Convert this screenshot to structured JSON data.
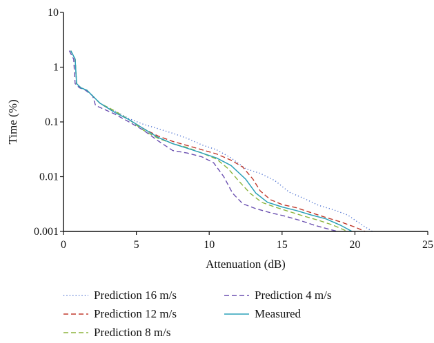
{
  "chart_data": {
    "type": "line",
    "title": "",
    "xlabel": "Attenuation (dB)",
    "ylabel": "Time (%)",
    "xlim": [
      0,
      25
    ],
    "ylim": [
      0.001,
      10
    ],
    "y_scale": "log",
    "grid": false,
    "legend_position": "bottom",
    "x_ticks": [
      "0",
      "5",
      "10",
      "15",
      "20",
      "25"
    ],
    "y_ticks": [
      "0.001",
      "0.01",
      "0.1",
      "1",
      "10"
    ],
    "series": [
      {
        "name": "Prediction 16 m/s",
        "color": "#4a6fd0",
        "dash": "dotted",
        "points": [
          [
            0.5,
            2.0
          ],
          [
            0.8,
            1.4
          ],
          [
            0.9,
            0.5
          ],
          [
            1.2,
            0.42
          ],
          [
            1.6,
            0.38
          ],
          [
            2.0,
            0.3
          ],
          [
            2.5,
            0.22
          ],
          [
            3.5,
            0.16
          ],
          [
            4.5,
            0.115
          ],
          [
            5.5,
            0.09
          ],
          [
            6.5,
            0.075
          ],
          [
            7.5,
            0.062
          ],
          [
            8.5,
            0.05
          ],
          [
            9.5,
            0.038
          ],
          [
            10.5,
            0.031
          ],
          [
            11.5,
            0.022
          ],
          [
            12.5,
            0.014
          ],
          [
            13.5,
            0.0115
          ],
          [
            14.5,
            0.0085
          ],
          [
            15.5,
            0.0052
          ],
          [
            16.5,
            0.004
          ],
          [
            17.5,
            0.003
          ],
          [
            18.5,
            0.0025
          ],
          [
            19.5,
            0.002
          ],
          [
            20.5,
            0.0013
          ],
          [
            21.2,
            0.001
          ]
        ]
      },
      {
        "name": "Prediction 12 m/s",
        "color": "#c0392b",
        "dash": "dashed",
        "points": [
          [
            0.5,
            2.0
          ],
          [
            0.8,
            1.4
          ],
          [
            0.9,
            0.5
          ],
          [
            1.2,
            0.42
          ],
          [
            1.6,
            0.38
          ],
          [
            2.0,
            0.3
          ],
          [
            2.5,
            0.22
          ],
          [
            3.5,
            0.15
          ],
          [
            4.5,
            0.11
          ],
          [
            5.5,
            0.075
          ],
          [
            6.5,
            0.055
          ],
          [
            7.5,
            0.044
          ],
          [
            8.5,
            0.037
          ],
          [
            9.5,
            0.031
          ],
          [
            10.5,
            0.026
          ],
          [
            11.5,
            0.02
          ],
          [
            12.3,
            0.015
          ],
          [
            13.0,
            0.009
          ],
          [
            13.5,
            0.0055
          ],
          [
            14.2,
            0.0038
          ],
          [
            15.0,
            0.0031
          ],
          [
            16.0,
            0.0027
          ],
          [
            17.0,
            0.0022
          ],
          [
            18.0,
            0.0018
          ],
          [
            19.0,
            0.0015
          ],
          [
            20.0,
            0.0012
          ],
          [
            20.7,
            0.001
          ]
        ]
      },
      {
        "name": "Prediction 8 m/s",
        "color": "#8cb43c",
        "dash": "dashed",
        "points": [
          [
            0.5,
            2.0
          ],
          [
            0.8,
            1.4
          ],
          [
            0.9,
            0.5
          ],
          [
            1.2,
            0.42
          ],
          [
            1.6,
            0.38
          ],
          [
            2.0,
            0.3
          ],
          [
            2.5,
            0.22
          ],
          [
            3.5,
            0.16
          ],
          [
            4.5,
            0.11
          ],
          [
            5.5,
            0.07
          ],
          [
            6.5,
            0.05
          ],
          [
            7.5,
            0.04
          ],
          [
            8.5,
            0.034
          ],
          [
            9.5,
            0.027
          ],
          [
            10.5,
            0.021
          ],
          [
            11.3,
            0.014
          ],
          [
            12.0,
            0.0085
          ],
          [
            12.8,
            0.005
          ],
          [
            13.6,
            0.0034
          ],
          [
            14.5,
            0.0028
          ],
          [
            15.5,
            0.0023
          ],
          [
            16.5,
            0.0019
          ],
          [
            17.5,
            0.0016
          ],
          [
            18.5,
            0.0013
          ],
          [
            19.5,
            0.001
          ]
        ]
      },
      {
        "name": "Prediction 4 m/s",
        "color": "#6a4fb0",
        "dash": "dashed",
        "points": [
          [
            0.4,
            2.0
          ],
          [
            0.7,
            1.4
          ],
          [
            0.8,
            0.5
          ],
          [
            1.1,
            0.42
          ],
          [
            1.5,
            0.38
          ],
          [
            2.0,
            0.3
          ],
          [
            2.2,
            0.2
          ],
          [
            3.5,
            0.14
          ],
          [
            4.5,
            0.1
          ],
          [
            5.5,
            0.07
          ],
          [
            6.5,
            0.045
          ],
          [
            7.5,
            0.03
          ],
          [
            8.5,
            0.027
          ],
          [
            9.5,
            0.023
          ],
          [
            10.3,
            0.018
          ],
          [
            11.0,
            0.01
          ],
          [
            11.6,
            0.005
          ],
          [
            12.3,
            0.0032
          ],
          [
            13.2,
            0.0026
          ],
          [
            14.2,
            0.0022
          ],
          [
            15.2,
            0.0019
          ],
          [
            16.2,
            0.0016
          ],
          [
            17.2,
            0.0013
          ],
          [
            18.2,
            0.0011
          ],
          [
            18.8,
            0.001
          ]
        ]
      },
      {
        "name": "Measured",
        "color": "#2aa0b8",
        "dash": "solid",
        "points": [
          [
            0.5,
            2.0
          ],
          [
            0.8,
            1.4
          ],
          [
            0.9,
            0.5
          ],
          [
            1.2,
            0.42
          ],
          [
            1.6,
            0.38
          ],
          [
            2.0,
            0.3
          ],
          [
            2.5,
            0.22
          ],
          [
            3.5,
            0.15
          ],
          [
            4.5,
            0.11
          ],
          [
            5.5,
            0.075
          ],
          [
            6.5,
            0.052
          ],
          [
            7.5,
            0.04
          ],
          [
            8.5,
            0.033
          ],
          [
            9.5,
            0.027
          ],
          [
            10.5,
            0.022
          ],
          [
            11.5,
            0.016
          ],
          [
            12.5,
            0.009
          ],
          [
            13.2,
            0.005
          ],
          [
            14.0,
            0.0034
          ],
          [
            15.0,
            0.0028
          ],
          [
            16.0,
            0.0024
          ],
          [
            17.0,
            0.002
          ],
          [
            18.0,
            0.0017
          ],
          [
            19.0,
            0.0013
          ],
          [
            19.8,
            0.001
          ]
        ]
      }
    ]
  }
}
